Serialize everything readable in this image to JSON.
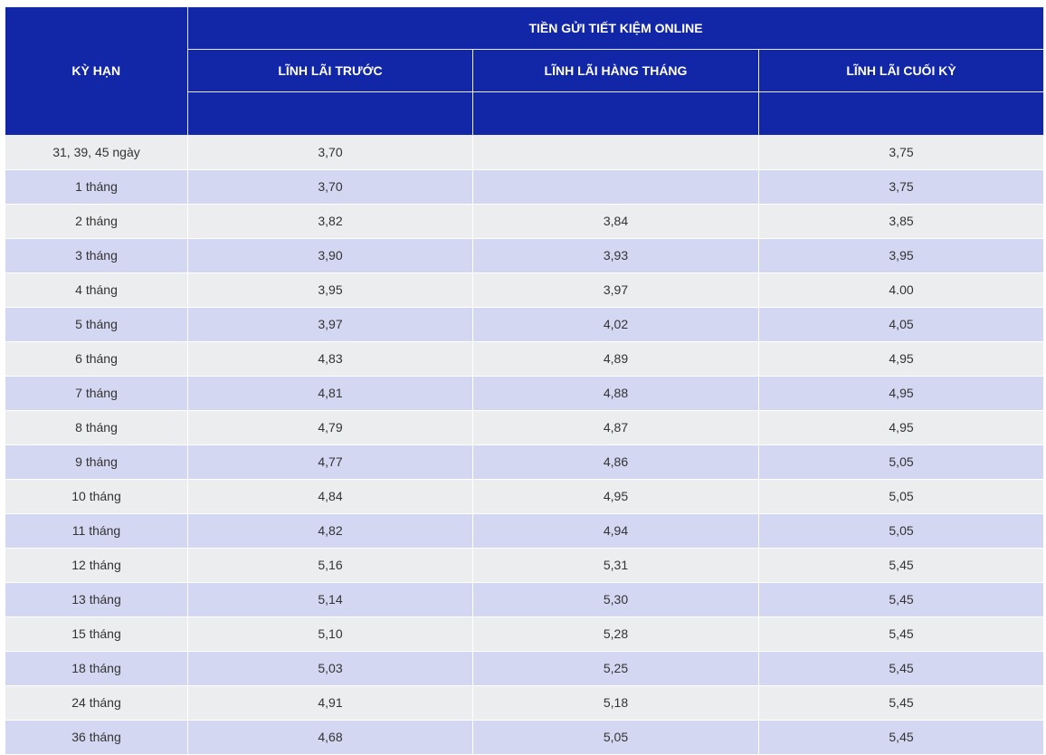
{
  "header": {
    "term": "KỲ HẠN",
    "group": "TIỀN GỬI TIẾT KIỆM ONLINE",
    "col_upfront": "LĨNH LÃI TRƯỚC",
    "col_monthly": "LĨNH LÃI HÀNG THÁNG",
    "col_maturity": "LĨNH LÃI CUỐI KỲ"
  },
  "rows": [
    {
      "term": "31, 39, 45 ngày",
      "upfront": "3,70",
      "monthly": "",
      "maturity": "3,75"
    },
    {
      "term": "1 tháng",
      "upfront": "3,70",
      "monthly": "",
      "maturity": "3,75"
    },
    {
      "term": "2 tháng",
      "upfront": "3,82",
      "monthly": "3,84",
      "maturity": "3,85"
    },
    {
      "term": "3 tháng",
      "upfront": "3,90",
      "monthly": "3,93",
      "maturity": "3,95"
    },
    {
      "term": "4 tháng",
      "upfront": "3,95",
      "monthly": "3,97",
      "maturity": "4.00"
    },
    {
      "term": "5 tháng",
      "upfront": "3,97",
      "monthly": "4,02",
      "maturity": "4,05"
    },
    {
      "term": "6 tháng",
      "upfront": "4,83",
      "monthly": "4,89",
      "maturity": "4,95"
    },
    {
      "term": "7 tháng",
      "upfront": "4,81",
      "monthly": "4,88",
      "maturity": "4,95"
    },
    {
      "term": "8 tháng",
      "upfront": "4,79",
      "monthly": "4,87",
      "maturity": "4,95"
    },
    {
      "term": "9 tháng",
      "upfront": "4,77",
      "monthly": "4,86",
      "maturity": "5,05"
    },
    {
      "term": "10 tháng",
      "upfront": "4,84",
      "monthly": "4,95",
      "maturity": "5,05"
    },
    {
      "term": "11 tháng",
      "upfront": "4,82",
      "monthly": "4,94",
      "maturity": "5,05"
    },
    {
      "term": "12 tháng",
      "upfront": "5,16",
      "monthly": "5,31",
      "maturity": "5,45"
    },
    {
      "term": "13 tháng",
      "upfront": "5,14",
      "monthly": "5,30",
      "maturity": "5,45"
    },
    {
      "term": "15 tháng",
      "upfront": "5,10",
      "monthly": "5,28",
      "maturity": "5,45"
    },
    {
      "term": "18 tháng",
      "upfront": "5,03",
      "monthly": "5,25",
      "maturity": "5,45"
    },
    {
      "term": "24 tháng",
      "upfront": "4,91",
      "monthly": "5,18",
      "maturity": "5,45"
    },
    {
      "term": "36 tháng",
      "upfront": "4,68",
      "monthly": "5,05",
      "maturity": "5,45"
    }
  ],
  "colors": {
    "header_bg": "#1226a8",
    "row_light": "#ecedef",
    "row_dark": "#d4d7f1"
  }
}
